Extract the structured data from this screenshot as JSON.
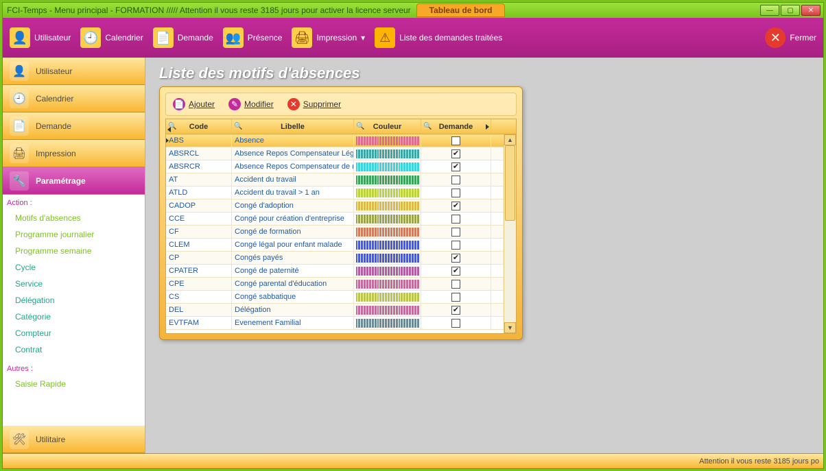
{
  "window": {
    "title": "FCI-Temps  -  Menu principal - FORMATION ///// Attention il vous reste 3185 jours pour activer la licence serveur",
    "tab": "Tableau de bord"
  },
  "ribbon": {
    "utilisateur": "Utilisateur",
    "calendrier": "Calendrier",
    "demande": "Demande",
    "presence": "Présence",
    "impression": "Impression",
    "liste_demandes": "Liste des demandes traitées",
    "fermer": "Fermer"
  },
  "sidebar": {
    "buttons": {
      "utilisateur": "Utilisateur",
      "calendrier": "Calendrier",
      "demande": "Demande",
      "impression": "Impression",
      "parametrage": "Paramétrage",
      "utilitaire": "Utilitaire"
    },
    "section_action": "Action :",
    "section_autres": "Autres :",
    "links": {
      "motifs": "Motifs d'absences",
      "prog_jour": "Programme journalier",
      "prog_sem": "Programme semaine",
      "cycle": "Cycle",
      "service": "Service",
      "delegation": "Délégation",
      "categorie": "Catégorie",
      "compteur": "Compteur",
      "contrat": "Contrat",
      "saisie": "Saisie Rapide"
    }
  },
  "page": {
    "title": "Liste des motifs d'absences"
  },
  "toolbar": {
    "ajouter": "Ajouter",
    "modifier": "Modifier",
    "supprimer": "Supprimer"
  },
  "grid": {
    "headers": {
      "code": "Code",
      "libelle": "Libelle",
      "couleur": "Couleur",
      "demande": "Demande"
    },
    "rows": [
      {
        "code": "ABS",
        "libelle": "Absence",
        "color": "#e06b8a",
        "demande": false,
        "selected": true
      },
      {
        "code": "ABSRCL",
        "libelle": "Absence Repos Compensateur Léga",
        "color": "#3aa6a6",
        "demande": true
      },
      {
        "code": "ABSRCR",
        "libelle": "Absence Repos Compensateur de re",
        "color": "#3ad6e0",
        "demande": true
      },
      {
        "code": "AT",
        "libelle": "Accident du travail",
        "color": "#3aa65a",
        "demande": false
      },
      {
        "code": "ATLD",
        "libelle": "Accident du travail > 1 an",
        "color": "#b8d63a",
        "demande": false
      },
      {
        "code": "CADOP",
        "libelle": "Congé d'adoption",
        "color": "#e0b84a",
        "demande": true
      },
      {
        "code": "CCE",
        "libelle": "Congé pour création d'entreprise",
        "color": "#9aa64a",
        "demande": false
      },
      {
        "code": "CF",
        "libelle": "Congé de formation",
        "color": "#d67a5a",
        "demande": false
      },
      {
        "code": "CLEM",
        "libelle": "Congé légal pour enfant malade",
        "color": "#4a5ad6",
        "demande": false
      },
      {
        "code": "CP",
        "libelle": "Congés payés",
        "color": "#4a5ad6",
        "demande": true
      },
      {
        "code": "CPATER",
        "libelle": "Congé de paternité",
        "color": "#b85aa6",
        "demande": true
      },
      {
        "code": "CPE",
        "libelle": "Congé parental d'éducation",
        "color": "#c66a9a",
        "demande": false
      },
      {
        "code": "CS",
        "libelle": "Congé sabbatique",
        "color": "#b8c64a",
        "demande": false
      },
      {
        "code": "DEL",
        "libelle": "Délégation",
        "color": "#c66a9a",
        "demande": true
      },
      {
        "code": "EVTFAM",
        "libelle": "Evenement Familial",
        "color": "#6a8a9a",
        "demande": false
      }
    ]
  },
  "statusbar": {
    "text": "Attention il vous reste 3185 jours po"
  }
}
